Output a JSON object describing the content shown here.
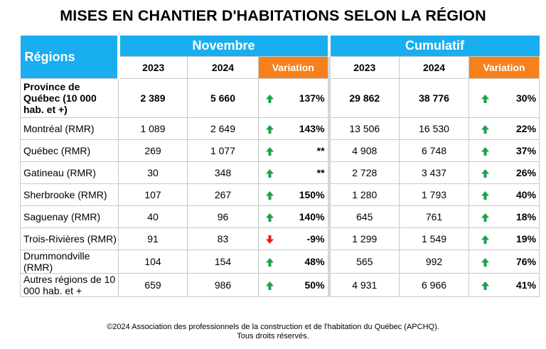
{
  "title": "MISES EN CHANTIER D'HABITATIONS SELON LA RÉGION",
  "headers": {
    "regions": "Régions",
    "novembre": "Novembre",
    "cumulatif": "Cumulatif",
    "y2023": "2023",
    "y2024": "2024",
    "variation": "Variation"
  },
  "colors": {
    "header_blue": "#19aef0",
    "variation_orange": "#f7801c",
    "arrow_up": "#1aa24a",
    "arrow_down": "#e02020"
  },
  "rows": [
    {
      "region": "Province de Québec (10 000 hab. et +)",
      "n2023": "2 389",
      "n2024": "5 660",
      "n_dir": "up",
      "n_var": "137%",
      "c2023": "29 862",
      "c2024": "38 776",
      "c_dir": "up",
      "c_var": "30%"
    },
    {
      "region": "Montréal (RMR)",
      "n2023": "1 089",
      "n2024": "2 649",
      "n_dir": "up",
      "n_var": "143%",
      "c2023": "13 506",
      "c2024": "16 530",
      "c_dir": "up",
      "c_var": "22%"
    },
    {
      "region": "Québec (RMR)",
      "n2023": "269",
      "n2024": "1 077",
      "n_dir": "up",
      "n_var": "**",
      "c2023": "4 908",
      "c2024": "6 748",
      "c_dir": "up",
      "c_var": "37%"
    },
    {
      "region": "Gatineau (RMR)",
      "n2023": "30",
      "n2024": "348",
      "n_dir": "up",
      "n_var": "**",
      "c2023": "2 728",
      "c2024": "3 437",
      "c_dir": "up",
      "c_var": "26%"
    },
    {
      "region": "Sherbrooke (RMR)",
      "n2023": "107",
      "n2024": "267",
      "n_dir": "up",
      "n_var": "150%",
      "c2023": "1 280",
      "c2024": "1 793",
      "c_dir": "up",
      "c_var": "40%"
    },
    {
      "region": "Saguenay (RMR)",
      "n2023": "40",
      "n2024": "96",
      "n_dir": "up",
      "n_var": "140%",
      "c2023": "645",
      "c2024": "761",
      "c_dir": "up",
      "c_var": "18%"
    },
    {
      "region": "Trois-Rivières (RMR)",
      "n2023": "91",
      "n2024": "83",
      "n_dir": "down",
      "n_var": "-9%",
      "c2023": "1 299",
      "c2024": "1 549",
      "c_dir": "up",
      "c_var": "19%"
    },
    {
      "region": "Drummondville (RMR)",
      "n2023": "104",
      "n2024": "154",
      "n_dir": "up",
      "n_var": "48%",
      "c2023": "565",
      "c2024": "992",
      "c_dir": "up",
      "c_var": "76%"
    },
    {
      "region": "Autres régions de 10 000  hab. et +",
      "n2023": "659",
      "n2024": "986",
      "n_dir": "up",
      "n_var": "50%",
      "c2023": "4 931",
      "c2024": "6 966",
      "c_dir": "up",
      "c_var": "41%"
    }
  ],
  "footer": {
    "line1": "©2024 Association des professionnels de la construction et de l'habitation du Québec (APCHQ).",
    "line2": "Tous droits réservés."
  }
}
